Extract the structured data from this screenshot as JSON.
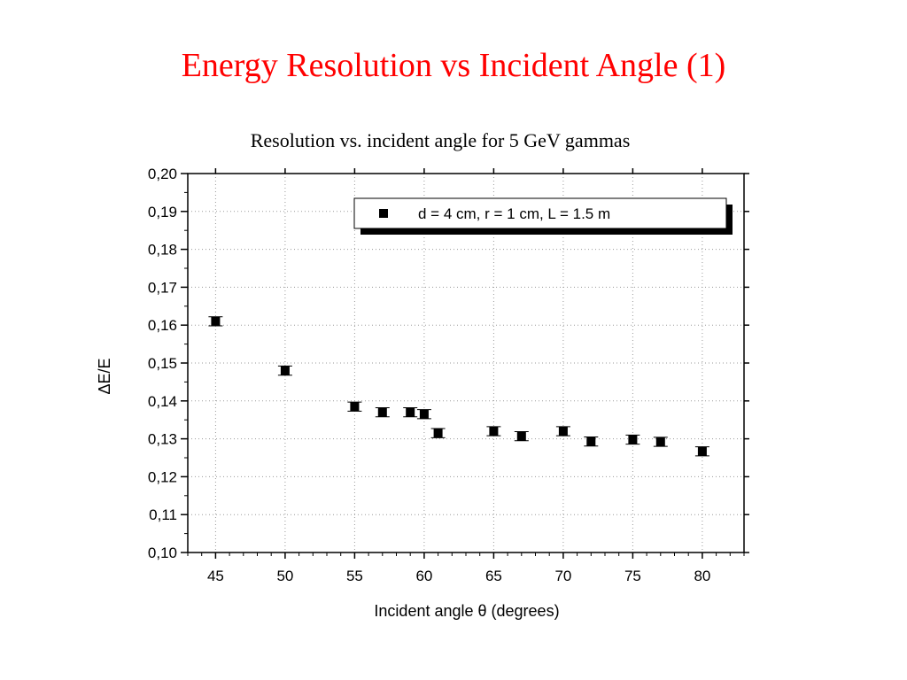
{
  "slide": {
    "title": "Energy Resolution vs Incident Angle (1)"
  },
  "chart_data": {
    "type": "scatter",
    "title": "Resolution vs. incident angle for 5 GeV gammas",
    "xlabel": "Incident angle θ (degrees)",
    "ylabel": "ΔE/E",
    "xlim": [
      43,
      83
    ],
    "ylim": [
      0.1,
      0.2
    ],
    "x_ticks": [
      45,
      50,
      55,
      60,
      65,
      70,
      75,
      80
    ],
    "x_tick_labels": [
      "45",
      "50",
      "55",
      "60",
      "65",
      "70",
      "75",
      "80"
    ],
    "y_ticks": [
      0.1,
      0.11,
      0.12,
      0.13,
      0.14,
      0.15,
      0.16,
      0.17,
      0.18,
      0.19,
      0.2
    ],
    "y_tick_labels": [
      "0,10",
      "0,11",
      "0,12",
      "0,13",
      "0,14",
      "0,15",
      "0,16",
      "0,17",
      "0,18",
      "0,19",
      "0,20"
    ],
    "grid": true,
    "legend_position": "top-right",
    "series": [
      {
        "name": "d = 4 cm, r = 1 cm, L = 1.5 m",
        "marker": "square",
        "color": "#000000",
        "x": [
          45,
          50,
          55,
          57,
          59,
          60,
          61,
          65,
          67,
          70,
          72,
          75,
          77,
          80
        ],
        "y": [
          0.161,
          0.148,
          0.1385,
          0.137,
          0.137,
          0.1365,
          0.1315,
          0.132,
          0.1307,
          0.132,
          0.1293,
          0.1298,
          0.1292,
          0.1267
        ],
        "yerr": [
          0.0012,
          0.0012,
          0.0012,
          0.0012,
          0.0012,
          0.0012,
          0.0012,
          0.0012,
          0.0012,
          0.0012,
          0.0012,
          0.0012,
          0.0012,
          0.0012
        ]
      }
    ]
  }
}
